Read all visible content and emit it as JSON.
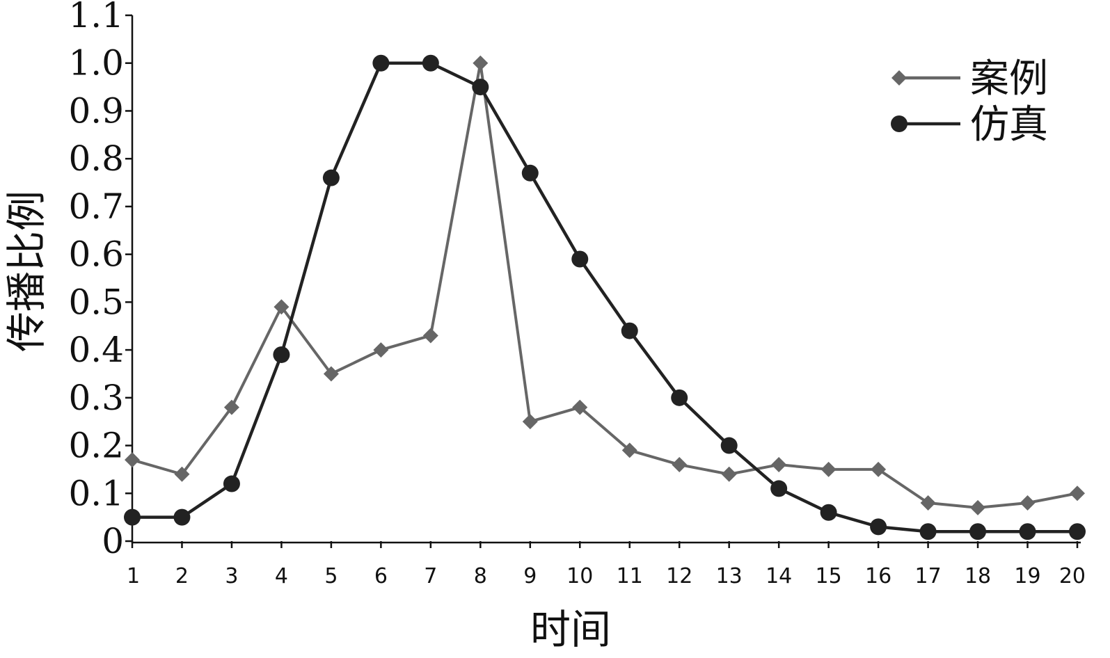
{
  "chart_data": {
    "type": "line",
    "xlabel": "时间",
    "ylabel": "传播比例",
    "x": [
      1,
      2,
      3,
      4,
      5,
      6,
      7,
      8,
      9,
      10,
      11,
      12,
      13,
      14,
      15,
      16,
      17,
      18,
      19,
      20
    ],
    "xlim": [
      1,
      20
    ],
    "ylim": [
      0,
      1.1
    ],
    "yticks": [
      "0",
      "0.1",
      "0.2",
      "0.3",
      "0.4",
      "0.5",
      "0.6",
      "0.7",
      "0.8",
      "0.9",
      "1.0",
      "1.1"
    ],
    "xticks": [
      "1",
      "2",
      "3",
      "4",
      "5",
      "6",
      "7",
      "8",
      "9",
      "10",
      "11",
      "12",
      "13",
      "14",
      "15",
      "16",
      "17",
      "18",
      "19",
      "20"
    ],
    "grid": false,
    "legend_position": "top-right",
    "series": [
      {
        "name": "案例",
        "marker": "diamond",
        "color": "#666666",
        "values": [
          0.17,
          0.14,
          0.28,
          0.49,
          0.35,
          0.4,
          0.43,
          1.0,
          0.25,
          0.28,
          0.19,
          0.16,
          0.14,
          0.16,
          0.15,
          0.15,
          0.08,
          0.07,
          0.08,
          0.1
        ]
      },
      {
        "name": "仿真",
        "marker": "circle",
        "color": "#222222",
        "values": [
          0.05,
          0.05,
          0.12,
          0.39,
          0.76,
          1.0,
          1.0,
          0.95,
          0.77,
          0.59,
          0.44,
          0.3,
          0.2,
          0.11,
          0.06,
          0.03,
          0.02,
          0.02,
          0.02,
          0.02
        ]
      }
    ]
  }
}
